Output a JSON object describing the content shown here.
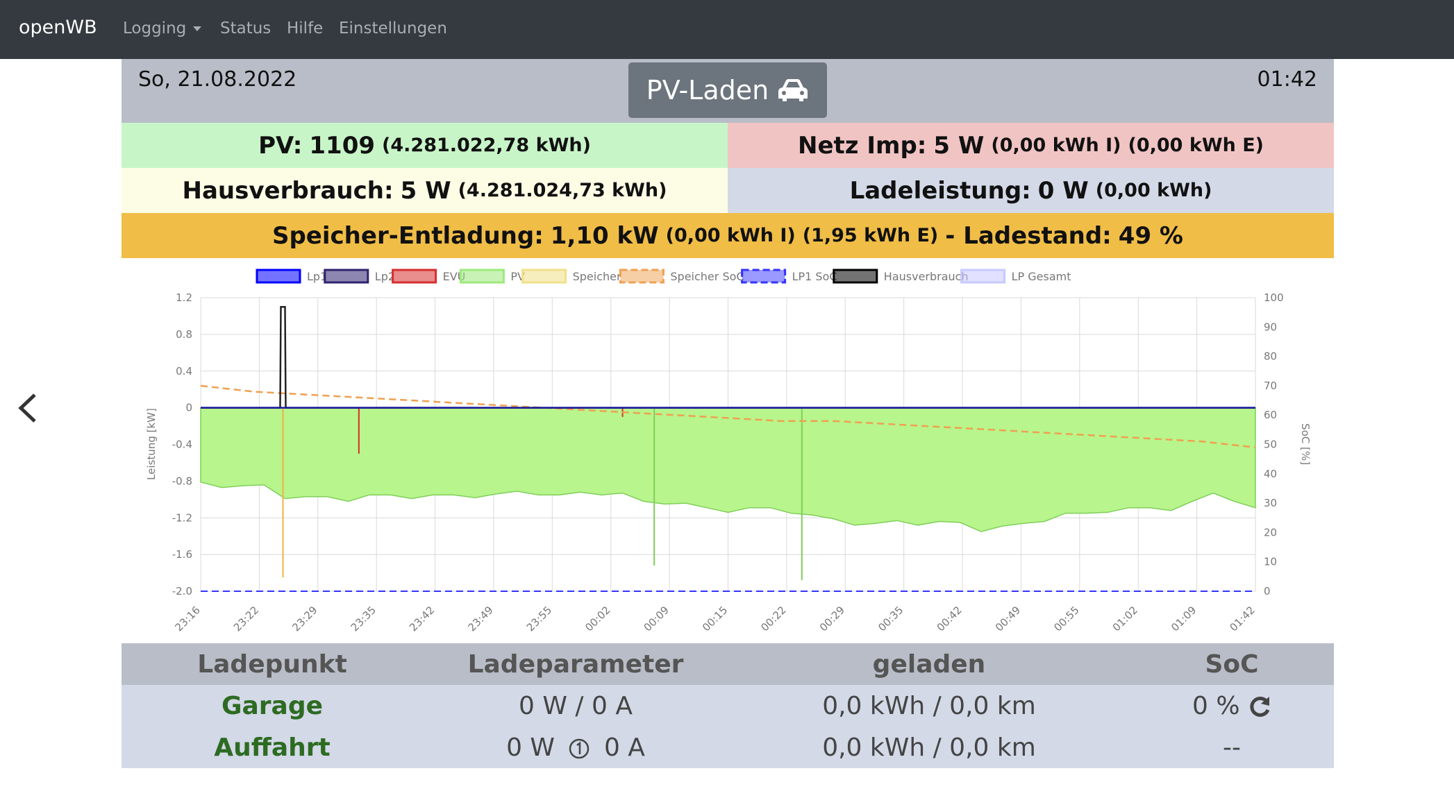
{
  "nav": {
    "brand": "openWB",
    "items": [
      {
        "label": "Logging",
        "dropdown": true
      },
      {
        "label": "Status"
      },
      {
        "label": "Hilfe"
      },
      {
        "label": "Einstellungen"
      }
    ]
  },
  "header": {
    "date": "So, 21.08.2022",
    "mode": "PV-Laden",
    "mode_icon": "car-icon",
    "time": "01:42"
  },
  "tiles": {
    "pv": {
      "label": "PV:",
      "value": "1109",
      "detail": "(4.281.022,78 kWh)",
      "color": "#c8f5c8"
    },
    "grid": {
      "label": "Netz Imp:",
      "value": "5 W",
      "detail1": "(0,00 kWh I)",
      "detail2": "(0,00 kWh E)",
      "color": "#f1c4c4"
    },
    "house": {
      "label": "Hausverbrauch:",
      "value": "5 W",
      "detail": "(4.281.024,73 kWh)",
      "color": "#fdfde6"
    },
    "charge": {
      "label": "Ladeleistung:",
      "value": "0 W",
      "detail": "(0,00 kWh)",
      "color": "#d3d9e7"
    },
    "storage": {
      "label": "Speicher-Entladung:",
      "value": "1,10 kW",
      "detail1": "(0,00 kWh I)",
      "detail2": "(1,95 kWh E)",
      "soc_label": "- Ladestand:",
      "soc_value": "49 %",
      "color": "#f0bd47"
    }
  },
  "chart_data": {
    "type": "area",
    "legend": [
      {
        "name": "Lp1",
        "color": "#0000ff"
      },
      {
        "name": "Lp2",
        "color": "#2f2270"
      },
      {
        "name": "EVU",
        "color": "#d62e2e"
      },
      {
        "name": "PV",
        "color": "#9cea7a"
      },
      {
        "name": "Speicher",
        "color": "#f0e088"
      },
      {
        "name": "Speicher SoC",
        "color": "#f0a050"
      },
      {
        "name": "LP1 SoC",
        "color": "#3333ff"
      },
      {
        "name": "Hausverbrauch",
        "color": "#000000"
      },
      {
        "name": "LP Gesamt",
        "color": "#c8c8ff"
      }
    ],
    "ylabel": "Leistung [kW]",
    "y2label": "SoC [%]",
    "ylim": [
      -2.0,
      1.2
    ],
    "y_ticks": [
      "1.2",
      "0.8",
      "0.4",
      "0",
      "-0.4",
      "-0.8",
      "-1.2",
      "-1.6",
      "-2.0"
    ],
    "y2lim": [
      0,
      100
    ],
    "y2_ticks": [
      "100",
      "90",
      "80",
      "70",
      "60",
      "50",
      "40",
      "30",
      "20",
      "10",
      "0"
    ],
    "x_ticks": [
      "23:16",
      "23:22",
      "23:29",
      "23:35",
      "23:42",
      "23:49",
      "23:55",
      "00:02",
      "00:09",
      "00:15",
      "00:22",
      "00:29",
      "00:35",
      "00:42",
      "00:49",
      "00:55",
      "01:02",
      "01:09",
      "01:42"
    ],
    "pv_series": [
      -0.84,
      -0.85,
      -0.86,
      -0.87,
      -0.97,
      -0.98,
      -1.0,
      -1.0,
      -0.96,
      -0.98,
      -0.97,
      -0.96,
      -0.98,
      -0.96,
      -0.95,
      -0.94,
      -0.93,
      -0.96,
      -0.95,
      -0.93,
      -0.94,
      -1.05,
      -1.03,
      -1.05,
      -1.12,
      -1.12,
      -1.1,
      -1.12,
      -1.13,
      -1.18,
      -1.24,
      -1.26,
      -1.27,
      -1.26,
      -1.26,
      -1.25,
      -1.28,
      -1.33,
      -1.3,
      -1.29,
      -1.22,
      -1.16,
      -1.18,
      -1.12,
      -1.1,
      -1.12,
      -1.1,
      -1.03,
      -0.96,
      -1.0,
      -1.1
    ],
    "house_series": [
      0.0,
      0.0,
      0.0,
      0.0,
      0.0,
      0.0,
      0.0,
      0.0,
      0.0,
      0.0,
      0.0,
      0.0,
      0.0,
      0.0,
      0.0,
      0.0,
      0.0,
      0.0,
      0.0,
      0.0,
      0.0,
      0.0,
      0.0,
      0.0,
      0.0,
      0.0,
      0.0,
      0.0,
      0.0,
      0.0,
      0.0,
      0.0,
      0.0,
      0.0,
      0.0,
      0.0,
      0.0,
      0.0,
      0.0,
      0.0,
      0.0,
      0.0,
      0.0,
      0.0,
      0.0,
      0.0,
      0.0,
      0.0,
      0.0,
      0.0,
      0.0
    ],
    "house_spike": 1.1,
    "speicher_soc_series": [
      70,
      68,
      67,
      66,
      65,
      64,
      63,
      62,
      61,
      60,
      59,
      58,
      58,
      57,
      56,
      55,
      54,
      53,
      52,
      51,
      49
    ],
    "lp1_soc": 0
  },
  "table": {
    "headers": [
      "Ladepunkt",
      "Ladeparameter",
      "geladen",
      "SoC"
    ],
    "rows": [
      {
        "name": "Garage",
        "params": "0 W / 0 A",
        "charged": "0,0 kWh / 0,0 km",
        "soc": "0 %"
      },
      {
        "name": "Auffahrt",
        "params_a": "0 W",
        "params_b": "0 A",
        "charged": "0,0 kWh / 0,0 km",
        "soc": "--"
      }
    ]
  }
}
